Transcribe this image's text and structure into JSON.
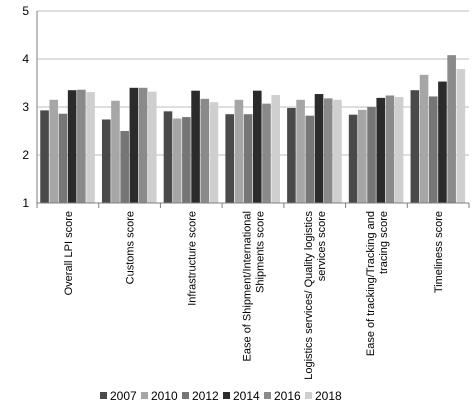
{
  "chart_data": {
    "type": "bar",
    "title": "",
    "xlabel": "",
    "ylabel": "",
    "ylim": [
      1,
      5
    ],
    "yticks": [
      1,
      2,
      3,
      4,
      5
    ],
    "grid": "horizontal",
    "legend_position": "bottom",
    "categories": [
      [
        "Overall LPI score"
      ],
      [
        "Customs score"
      ],
      [
        "Infrastructure score"
      ],
      [
        "Ease of Shipment/International",
        "Shipments score"
      ],
      [
        "Logistics services/ Quality logistics",
        "services score"
      ],
      [
        "Ease of tracking/Tracking and",
        "tracing score"
      ],
      [
        "Timeliness score"
      ]
    ],
    "series": [
      {
        "name": "2007",
        "color": "#4a4a4a",
        "values": [
          2.93,
          2.74,
          2.91,
          2.85,
          2.98,
          2.84,
          3.35
        ]
      },
      {
        "name": "2010",
        "color": "#a6a6a6",
        "values": [
          3.15,
          3.13,
          2.76,
          3.15,
          3.15,
          2.94,
          3.67
        ]
      },
      {
        "name": "2012",
        "color": "#767676",
        "values": [
          2.86,
          2.5,
          2.79,
          2.85,
          2.82,
          3.0,
          3.22
        ]
      },
      {
        "name": "2014",
        "color": "#2b2b2b",
        "values": [
          3.35,
          3.4,
          3.34,
          3.34,
          3.27,
          3.19,
          3.53
        ]
      },
      {
        "name": "2016",
        "color": "#8a8a8a",
        "values": [
          3.36,
          3.4,
          3.17,
          3.07,
          3.18,
          3.24,
          4.08
        ]
      },
      {
        "name": "2018",
        "color": "#cfcfcf",
        "values": [
          3.31,
          3.32,
          3.1,
          3.25,
          3.15,
          3.21,
          3.79
        ]
      }
    ]
  }
}
